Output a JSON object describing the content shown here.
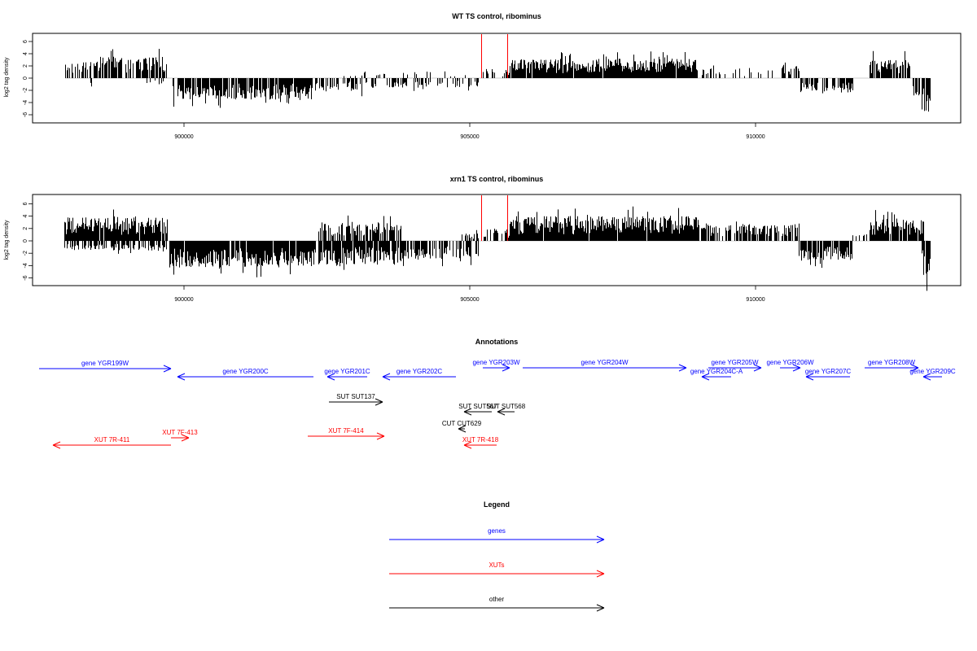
{
  "chart_data": [
    {
      "type": "bar",
      "title": "WT TS control, ribominus",
      "ylabel": "log2 tag density",
      "xlim": [
        897600,
        913900
      ],
      "ylim": [
        -7.5,
        7.5
      ],
      "yticks": [
        -6,
        -4,
        -2,
        0,
        2,
        4,
        6
      ],
      "xticks": [
        900000,
        905000,
        910000
      ],
      "xtick_labels": [
        "900000",
        "905000",
        "910000"
      ],
      "ytick_labels": [
        "-6",
        "-4",
        "-2",
        "0",
        "2",
        "4",
        "6"
      ],
      "grid": false,
      "bar_color": "#000000",
      "marker_color": "#ff0000",
      "markers_x": [
        905200,
        905650
      ],
      "marker_top": 7.0,
      "segments": [
        {
          "start": 897900,
          "end": 898450,
          "sign": 1,
          "amp": 2.6,
          "density": 0.5
        },
        {
          "start": 898450,
          "end": 899700,
          "sign": 1,
          "amp": 3.5,
          "density": 0.75
        },
        {
          "start": 898300,
          "end": 898450,
          "sign": -1,
          "amp": 1.6,
          "density": 0.3
        },
        {
          "start": 899350,
          "end": 899650,
          "sign": -1,
          "amp": 1.0,
          "density": 0.3
        },
        {
          "start": 899800,
          "end": 902250,
          "sign": -1,
          "amp": 3.5,
          "density": 0.85
        },
        {
          "start": 902300,
          "end": 903400,
          "sign": -1,
          "amp": 2.2,
          "density": 0.5
        },
        {
          "start": 902700,
          "end": 903500,
          "sign": 1,
          "amp": 1.1,
          "density": 0.2
        },
        {
          "start": 903500,
          "end": 904600,
          "sign": -1,
          "amp": 1.6,
          "density": 0.35
        },
        {
          "start": 903800,
          "end": 904400,
          "sign": 1,
          "amp": 1.2,
          "density": 0.15
        },
        {
          "start": 904650,
          "end": 905150,
          "sign": -1,
          "amp": 1.7,
          "density": 0.35
        },
        {
          "start": 904550,
          "end": 905250,
          "sign": 1,
          "amp": 1.0,
          "density": 0.2
        },
        {
          "start": 905250,
          "end": 905450,
          "sign": 1,
          "amp": 1.5,
          "density": 0.4
        },
        {
          "start": 905550,
          "end": 905700,
          "sign": 1,
          "amp": 1.0,
          "density": 0.3
        },
        {
          "start": 905700,
          "end": 908950,
          "sign": 1,
          "amp": 3.2,
          "density": 0.95
        },
        {
          "start": 908950,
          "end": 909750,
          "sign": 1,
          "amp": 1.6,
          "density": 0.35
        },
        {
          "start": 909750,
          "end": 910300,
          "sign": 1,
          "amp": 1.3,
          "density": 0.25
        },
        {
          "start": 910450,
          "end": 910750,
          "sign": 1,
          "amp": 2.2,
          "density": 0.6
        },
        {
          "start": 910750,
          "end": 911700,
          "sign": -1,
          "amp": 2.2,
          "density": 0.6
        },
        {
          "start": 912000,
          "end": 912700,
          "sign": 1,
          "amp": 3.2,
          "density": 0.8
        },
        {
          "start": 912750,
          "end": 912900,
          "sign": -1,
          "amp": 3.2,
          "density": 0.7
        },
        {
          "start": 912900,
          "end": 913050,
          "sign": -1,
          "amp": 5.8,
          "density": 0.9
        }
      ]
    },
    {
      "type": "bar",
      "title": "xrn1 TS control, ribominus",
      "ylabel": "log2 tag density",
      "xlim": [
        897600,
        913900
      ],
      "ylim": [
        -7.5,
        7.5
      ],
      "yticks": [
        -6,
        -4,
        -2,
        0,
        2,
        4,
        6
      ],
      "xticks": [
        900000,
        905000,
        910000
      ],
      "xtick_labels": [
        "900000",
        "905000",
        "910000"
      ],
      "ytick_labels": [
        "-6",
        "-4",
        "-2",
        "0",
        "2",
        "4",
        "6"
      ],
      "grid": false,
      "bar_color": "#000000",
      "marker_color": "#ff0000",
      "markers_x": [
        905200,
        905650
      ],
      "marker_top": 7.0,
      "segments": [
        {
          "start": 897900,
          "end": 899700,
          "sign": 1,
          "amp": 3.8,
          "density": 0.95
        },
        {
          "start": 897900,
          "end": 899700,
          "sign": -1,
          "amp": 1.6,
          "density": 0.5
        },
        {
          "start": 899750,
          "end": 902300,
          "sign": -1,
          "amp": 4.3,
          "density": 0.95
        },
        {
          "start": 902350,
          "end": 903800,
          "sign": 1,
          "amp": 3.0,
          "density": 0.7
        },
        {
          "start": 902350,
          "end": 903800,
          "sign": -1,
          "amp": 3.8,
          "density": 0.85
        },
        {
          "start": 903800,
          "end": 904600,
          "sign": -1,
          "amp": 3.0,
          "density": 0.6
        },
        {
          "start": 904600,
          "end": 905250,
          "sign": -1,
          "amp": 2.8,
          "density": 0.5
        },
        {
          "start": 904700,
          "end": 905250,
          "sign": 1,
          "amp": 1.4,
          "density": 0.3
        },
        {
          "start": 905250,
          "end": 905700,
          "sign": 1,
          "amp": 2.0,
          "density": 0.5
        },
        {
          "start": 905700,
          "end": 909000,
          "sign": 1,
          "amp": 4.0,
          "density": 0.98
        },
        {
          "start": 909000,
          "end": 910400,
          "sign": 1,
          "amp": 2.6,
          "density": 0.65
        },
        {
          "start": 910450,
          "end": 910750,
          "sign": 1,
          "amp": 2.8,
          "density": 0.7
        },
        {
          "start": 910750,
          "end": 911700,
          "sign": -1,
          "amp": 3.2,
          "density": 0.8
        },
        {
          "start": 911700,
          "end": 912000,
          "sign": 1,
          "amp": 1.2,
          "density": 0.3
        },
        {
          "start": 912000,
          "end": 912950,
          "sign": 1,
          "amp": 3.6,
          "density": 0.9
        },
        {
          "start": 912900,
          "end": 913050,
          "sign": -1,
          "amp": 6.0,
          "density": 0.95
        }
      ]
    }
  ],
  "annotations": {
    "title": "Annotations",
    "features": [
      {
        "label": "gene YGR199W",
        "color": "#0000ff",
        "start": 48,
        "end": 210,
        "row": 453,
        "dir": "right"
      },
      {
        "label": "gene YGR200C",
        "color": "#0000ff",
        "start": 218,
        "end": 385,
        "row": 463,
        "dir": "left"
      },
      {
        "label": "gene YGR201C",
        "color": "#0000ff",
        "start": 402,
        "end": 451,
        "row": 463,
        "dir": "left"
      },
      {
        "label": "gene YGR202C",
        "color": "#0000ff",
        "start": 470,
        "end": 560,
        "row": 463,
        "dir": "left"
      },
      {
        "label": "gene YGR203W",
        "color": "#0000ff",
        "start": 593,
        "end": 626,
        "row": 452,
        "dir": "right"
      },
      {
        "label": "gene YGR204W",
        "color": "#0000ff",
        "start": 642,
        "end": 843,
        "row": 452,
        "dir": "right"
      },
      {
        "label": "gene YGR204C-A",
        "color": "#0000ff",
        "start": 862,
        "end": 898,
        "row": 463,
        "dir": "left"
      },
      {
        "label": "gene YGR205W",
        "color": "#0000ff",
        "start": 870,
        "end": 935,
        "row": 452,
        "dir": "right"
      },
      {
        "label": "gene YGR206W",
        "color": "#0000ff",
        "start": 958,
        "end": 983,
        "row": 452,
        "dir": "right"
      },
      {
        "label": "gene YGR207C",
        "color": "#0000ff",
        "start": 990,
        "end": 1044,
        "row": 463,
        "dir": "left"
      },
      {
        "label": "gene YGR208W",
        "color": "#0000ff",
        "start": 1062,
        "end": 1128,
        "row": 452,
        "dir": "right"
      },
      {
        "label": "gene YGR209C",
        "color": "#0000ff",
        "start": 1134,
        "end": 1157,
        "row": 463,
        "dir": "left"
      },
      {
        "label": "SUT SUT137",
        "color": "#000000",
        "start": 404,
        "end": 470,
        "row": 494,
        "dir": "right"
      },
      {
        "label": "SUT SUT567",
        "color": "#000000",
        "start": 570,
        "end": 604,
        "row": 506,
        "dir": "left"
      },
      {
        "label": "SUT SUT568",
        "color": "#000000",
        "start": 611,
        "end": 632,
        "row": 506,
        "dir": "left"
      },
      {
        "label": "CUT CUT629",
        "color": "#000000",
        "start": 563,
        "end": 571,
        "row": 527,
        "dir": "left"
      },
      {
        "label": "XUT 7F-413",
        "color": "#ff0000",
        "start": 210,
        "end": 232,
        "row": 538,
        "dir": "right"
      },
      {
        "label": "XUT 7R-411",
        "color": "#ff0000",
        "start": 65,
        "end": 210,
        "row": 547,
        "dir": "left"
      },
      {
        "label": "XUT 7F-414",
        "color": "#ff0000",
        "start": 378,
        "end": 472,
        "row": 536,
        "dir": "right"
      },
      {
        "label": "XUT 7R-418",
        "color": "#ff0000",
        "start": 570,
        "end": 610,
        "row": 547,
        "dir": "left"
      }
    ]
  },
  "legend": {
    "title": "Legend",
    "items": [
      {
        "label": "genes",
        "color": "#0000ff"
      },
      {
        "label": "XUTs",
        "color": "#ff0000"
      },
      {
        "label": "other",
        "color": "#000000"
      }
    ]
  }
}
